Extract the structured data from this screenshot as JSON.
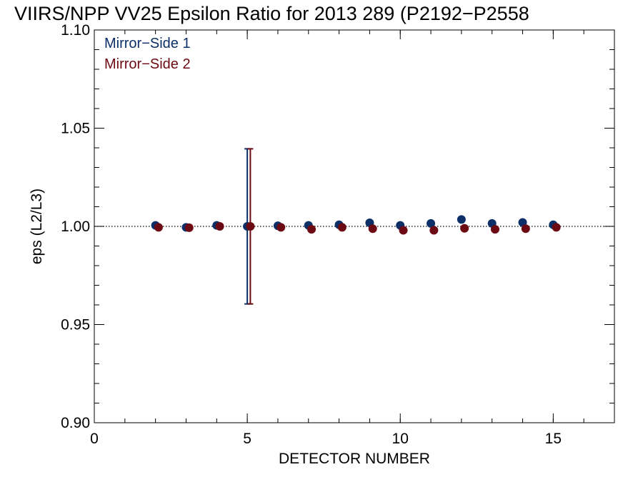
{
  "colors": {
    "series1": "#0b2f66",
    "series2": "#6b0a12",
    "axis": "#000000"
  },
  "chart_data": {
    "type": "scatter",
    "title": "VIIRS/NPP VV25 Epsilon Ratio for 2013 289 (P2192−P2558",
    "xlabel": "DETECTOR NUMBER",
    "ylabel": "eps (L2/L3)",
    "xlim": [
      0,
      17
    ],
    "ylim": [
      0.9,
      1.1
    ],
    "x_ticks": [
      0,
      5,
      10,
      15
    ],
    "y_ticks": [
      0.9,
      0.95,
      1.0,
      1.05,
      1.1
    ],
    "x_tick_labels": [
      "0",
      "5",
      "10",
      "15"
    ],
    "y_tick_labels": [
      "0.90",
      "0.95",
      "1.00",
      "1.05",
      "1.10"
    ],
    "reference_line": {
      "y": 1.0,
      "style": "dotted"
    },
    "legend": {
      "placement": "top-left",
      "entries": [
        "Mirror−Side 1",
        "Mirror−Side 2"
      ]
    },
    "series": [
      {
        "name": "Mirror−Side 1",
        "color": "#0b2f66",
        "x": [
          2,
          3,
          4,
          5,
          6,
          7,
          8,
          9,
          10,
          11,
          12,
          13,
          14,
          15
        ],
        "y": [
          1.0005,
          0.9995,
          1.0005,
          1.0,
          1.0003,
          1.0005,
          1.0008,
          1.0018,
          1.0005,
          1.0015,
          1.0035,
          1.0015,
          1.002,
          1.0008
        ],
        "error_bars": [
          {
            "x": 5,
            "low": 0.9605,
            "high": 1.0395
          }
        ]
      },
      {
        "name": "Mirror−Side 2",
        "color": "#6b0a12",
        "x": [
          2.1,
          3.1,
          4.1,
          5.1,
          6.1,
          7.1,
          8.1,
          9.1,
          10.1,
          11.1,
          12.1,
          13.1,
          14.1,
          15.1
        ],
        "y": [
          0.9995,
          0.9993,
          1.0,
          1.0,
          0.9995,
          0.9985,
          0.9995,
          0.9988,
          0.998,
          0.998,
          0.999,
          0.9985,
          0.9988,
          0.9995
        ],
        "error_bars": [
          {
            "x": 5.1,
            "low": 0.9605,
            "high": 1.0395
          }
        ]
      }
    ]
  }
}
